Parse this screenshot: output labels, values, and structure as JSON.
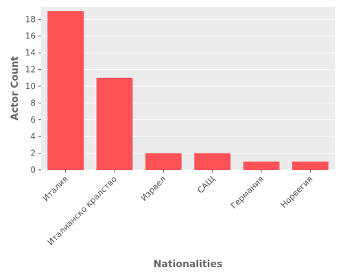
{
  "chart_data": {
    "type": "bar",
    "categories": [
      "Италия",
      "Италианско кралство",
      "Израел",
      "САЩ",
      "Германия",
      "Норвегия"
    ],
    "values": [
      19,
      11,
      2,
      2,
      1,
      1
    ],
    "title": "",
    "xlabel": "Nationalities",
    "ylabel": "Actor Count",
    "ylim": [
      0,
      19.5
    ],
    "yticks": [
      0,
      2,
      4,
      6,
      8,
      10,
      12,
      14,
      16,
      18
    ],
    "grid": true,
    "colors": {
      "bar": "#ff5257",
      "plot_background": "#ebebeb",
      "grid": "#ffffff"
    }
  }
}
